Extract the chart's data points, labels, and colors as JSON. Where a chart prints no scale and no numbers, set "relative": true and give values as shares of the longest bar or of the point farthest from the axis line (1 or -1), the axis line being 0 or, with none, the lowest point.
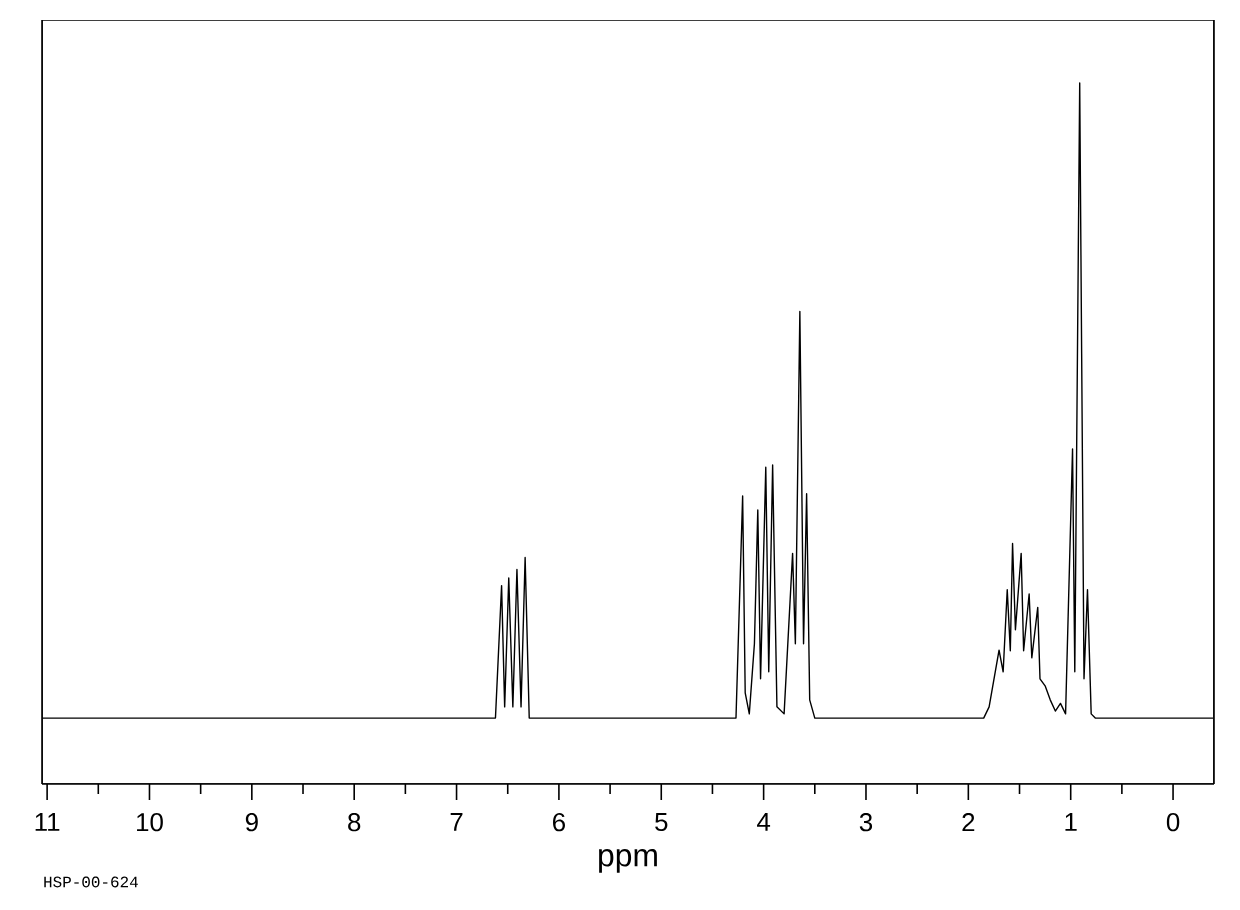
{
  "chart_data": {
    "type": "line",
    "xlabel": "ppm",
    "annotations": [
      "HSP-00-624"
    ],
    "relative": true,
    "color": "#000000",
    "xlim": [
      11.05,
      -0.4
    ],
    "xticks": [
      11,
      {
        "value": 10.5,
        "label": null
      },
      10,
      {
        "value": 9.5,
        "label": null
      },
      9,
      {
        "value": 8.5,
        "label": null
      },
      8,
      {
        "value": 7.5,
        "label": null
      },
      7,
      {
        "value": 6.5,
        "label": null
      },
      6,
      {
        "value": 5.5,
        "label": null
      },
      5,
      {
        "value": 4.5,
        "label": null
      },
      4,
      {
        "value": 3.5,
        "label": null
      },
      3,
      {
        "value": 2.5,
        "label": null
      },
      2,
      {
        "value": 1.5,
        "label": null
      },
      1,
      {
        "value": 0.5,
        "label": null
      },
      0
    ],
    "x": [
      11.05,
      6.62,
      6.56,
      6.53,
      6.49,
      6.45,
      6.41,
      6.37,
      6.33,
      6.29,
      4.27,
      4.205,
      4.18,
      4.14,
      4.09,
      4.057,
      4.03,
      3.979,
      3.95,
      3.912,
      3.87,
      3.8,
      3.717,
      3.69,
      3.646,
      3.61,
      3.58,
      3.55,
      3.5,
      1.85,
      1.797,
      1.7,
      1.66,
      1.62,
      1.59,
      1.568,
      1.54,
      1.484,
      1.46,
      1.406,
      1.38,
      1.322,
      1.3,
      1.25,
      1.2,
      1.15,
      1.1,
      1.05,
      0.982,
      0.96,
      0.912,
      0.893,
      0.87,
      0.836,
      0.8,
      0.76,
      -0.39
    ],
    "values": [
      0.094,
      0.094,
      0.283,
      0.11,
      0.294,
      0.11,
      0.306,
      0.11,
      0.323,
      0.094,
      0.094,
      0.411,
      0.13,
      0.1,
      0.2,
      0.391,
      0.15,
      0.452,
      0.16,
      0.455,
      0.11,
      0.1,
      0.329,
      0.2,
      0.674,
      0.2,
      0.414,
      0.12,
      0.094,
      0.094,
      0.11,
      0.191,
      0.16,
      0.277,
      0.19,
      0.343,
      0.22,
      0.329,
      0.19,
      0.271,
      0.18,
      0.252,
      0.15,
      0.14,
      0.12,
      0.104,
      0.115,
      0.1,
      0.478,
      0.16,
      1.0,
      0.614,
      0.15,
      0.277,
      0.1,
      0.094,
      0.094
    ]
  }
}
